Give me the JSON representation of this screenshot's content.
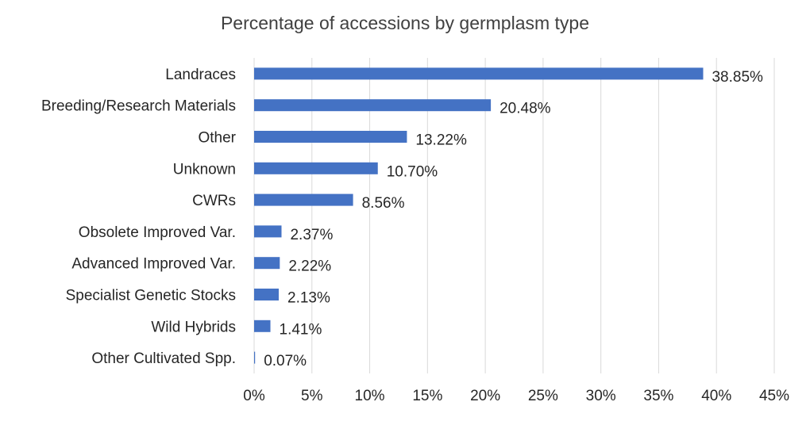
{
  "chart_data": {
    "type": "bar",
    "orientation": "horizontal",
    "title": "Percentage of accessions by germplasm type",
    "xlabel": "",
    "ylabel": "",
    "categories": [
      "Landraces",
      "Breeding/Research Materials",
      "Other",
      "Unknown",
      "CWRs",
      "Obsolete Improved Var.",
      "Advanced Improved Var.",
      "Specialist Genetic Stocks",
      "Wild Hybrids",
      "Other Cultivated Spp."
    ],
    "values": [
      38.85,
      20.48,
      13.22,
      10.7,
      8.56,
      2.37,
      2.22,
      2.13,
      1.41,
      0.07
    ],
    "value_labels": [
      "38.85%",
      "20.48%",
      "13.22%",
      "10.70%",
      "8.56%",
      "2.37%",
      "2.22%",
      "2.13%",
      "1.41%",
      "0.07%"
    ],
    "xlim": [
      0,
      45
    ],
    "xticks": [
      0,
      5,
      10,
      15,
      20,
      25,
      30,
      35,
      40,
      45
    ],
    "xtick_labels": [
      "0%",
      "5%",
      "10%",
      "15%",
      "20%",
      "25%",
      "30%",
      "35%",
      "40%",
      "45%"
    ],
    "grid": true,
    "legend": "none",
    "bar_color": "#4472C4",
    "grid_color": "#D9D9D9"
  }
}
